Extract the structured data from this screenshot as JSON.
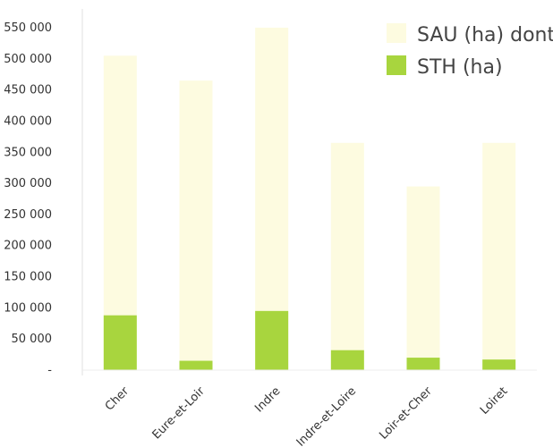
{
  "chart_data": {
    "type": "bar",
    "categories": [
      "Cher",
      "Eure-et-Loir",
      "Indre",
      "Indre-et-Loire",
      "Loir-et-Cher",
      "Loiret"
    ],
    "series": [
      {
        "name": "SAU (ha) dont",
        "color": "#fdfbe0",
        "values": [
          505000,
          465000,
          550000,
          365000,
          295000,
          365000
        ]
      },
      {
        "name": "STH (ha)",
        "color": "#a8d53e",
        "values": [
          88000,
          15000,
          95000,
          32000,
          20000,
          17000
        ]
      }
    ],
    "overlap": true,
    "ylim": [
      0,
      560000
    ],
    "yticks": [
      0,
      50000,
      100000,
      150000,
      200000,
      250000,
      300000,
      350000,
      400000,
      450000,
      500000,
      550000
    ],
    "ytick_labels": [
      "-",
      "50 000",
      "100 000",
      "150 000",
      "200 000",
      "250 000",
      "300 000",
      "350 000",
      "400 000",
      "450 000",
      "500 000",
      "550 000"
    ],
    "grid": false,
    "legend": "top-right",
    "title": "",
    "xlabel": "",
    "ylabel": ""
  }
}
